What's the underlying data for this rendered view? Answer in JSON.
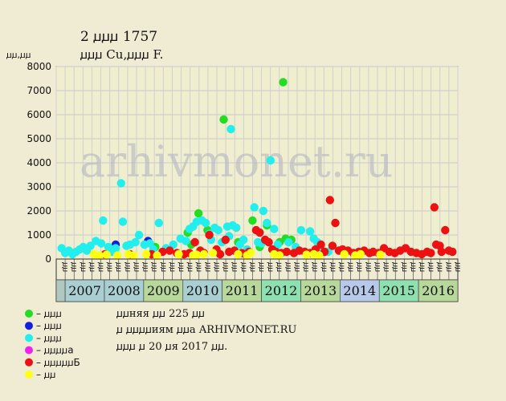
{
  "header": {
    "title": "2 ꙡꙡꙡ 1757",
    "subtitle": "ꙡꙡꙡ Cu,ꙡꙡꙡ F."
  },
  "watermark": "arhivmonet.ru",
  "chart_data": {
    "type": "scatter",
    "ylabel": "ꙡꙡ,ꙡꙡ",
    "ylim": [
      0,
      8000
    ],
    "yticks": [
      0,
      1000,
      2000,
      3000,
      4000,
      5000,
      6000,
      7000,
      8000
    ],
    "grid": true,
    "xlim": [
      2006.25,
      2017.4
    ],
    "x_half_labels": [
      "ꙡꙡ",
      "ꙡꙡ",
      "ꙡꙡ",
      "ꙡꙡ",
      "ꙡꙡ",
      "ꙡꙡ",
      "ꙡꙡ",
      "ꙡꙡ",
      "ꙡꙡ",
      "ꙡꙡ",
      "ꙡꙡ",
      "ꙡꙡ",
      "ꙡꙡ",
      "ꙡꙡ",
      "ꙡꙡ",
      "ꙡꙡ",
      "ꙡꙡ",
      "ꙡꙡ",
      "ꙡꙡ",
      "ꙡꙡ",
      "ꙡꙡ",
      "ꙡꙡ",
      "ꙡꙡ",
      "ꙡꙡ",
      "ꙡꙡ",
      "ꙡꙡ",
      "ꙡꙡ",
      "ꙡꙡ",
      "ꙡꙡ",
      "ꙡꙡ",
      "ꙡꙡ",
      "ꙡꙡ",
      "ꙡꙡ",
      "ꙡꙡ",
      "ꙡꙡ",
      "ꙡꙡ",
      "ꙡꙡ",
      "ꙡꙡ",
      "ꙡꙡ",
      "ꙡꙡ",
      "ꙡꙡ",
      "ꙡꙡ",
      "ꙡꙡ",
      "ꙡꙡ",
      "ꙡꙡ"
    ],
    "years": [
      {
        "label": "2007",
        "color": "#a9cfd3"
      },
      {
        "label": "2008",
        "color": "#a9cfd3"
      },
      {
        "label": "2009",
        "color": "#b7d79b"
      },
      {
        "label": "2010",
        "color": "#a9cfd3"
      },
      {
        "label": "2011",
        "color": "#b7d79b"
      },
      {
        "label": "2012",
        "color": "#8fe0b0"
      },
      {
        "label": "2013",
        "color": "#b7d79b"
      },
      {
        "label": "2014",
        "color": "#b8c8e8"
      },
      {
        "label": "2015",
        "color": "#8fe0b0"
      },
      {
        "label": "2016",
        "color": "#b7d79b"
      }
    ],
    "series": [
      {
        "name": "ꙡꙡꙡ",
        "color": "#22dd22",
        "points": [
          [
            2009.0,
            500
          ],
          [
            2009.9,
            1100
          ],
          [
            2010.2,
            1900
          ],
          [
            2010.45,
            1200
          ],
          [
            2010.9,
            5800
          ],
          [
            2011.7,
            1600
          ],
          [
            2011.9,
            500
          ],
          [
            2012.1,
            1400
          ],
          [
            2012.45,
            700
          ],
          [
            2012.55,
            7350
          ],
          [
            2012.62,
            850
          ],
          [
            2012.78,
            800
          ],
          [
            2010.0,
            600
          ],
          [
            2011.3,
            700
          ]
        ]
      },
      {
        "name": "ꙡꙡꙡ",
        "color": "#1020dd",
        "points": [
          [
            2007.9,
            600
          ],
          [
            2008.8,
            750
          ]
        ]
      },
      {
        "name": "ꙡꙡꙡ",
        "color": "#22eeee",
        "points": [
          [
            2006.4,
            450
          ],
          [
            2006.5,
            250
          ],
          [
            2006.6,
            350
          ],
          [
            2006.7,
            200
          ],
          [
            2006.8,
            300
          ],
          [
            2006.9,
            400
          ],
          [
            2007.0,
            500
          ],
          [
            2007.1,
            350
          ],
          [
            2007.2,
            550
          ],
          [
            2007.35,
            750
          ],
          [
            2007.5,
            650
          ],
          [
            2007.55,
            1600
          ],
          [
            2007.7,
            500
          ],
          [
            2007.8,
            300
          ],
          [
            2007.9,
            450
          ],
          [
            2008.05,
            3150
          ],
          [
            2008.1,
            1550
          ],
          [
            2008.2,
            550
          ],
          [
            2008.3,
            600
          ],
          [
            2008.45,
            700
          ],
          [
            2008.55,
            1000
          ],
          [
            2008.7,
            600
          ],
          [
            2008.85,
            650
          ],
          [
            2008.95,
            400
          ],
          [
            2009.1,
            1500
          ],
          [
            2009.3,
            450
          ],
          [
            2009.5,
            600
          ],
          [
            2009.7,
            850
          ],
          [
            2009.85,
            750
          ],
          [
            2009.95,
            1250
          ],
          [
            2010.05,
            1350
          ],
          [
            2010.15,
            1550
          ],
          [
            2010.3,
            1600
          ],
          [
            2010.4,
            1500
          ],
          [
            2010.55,
            800
          ],
          [
            2010.65,
            1300
          ],
          [
            2010.75,
            1200
          ],
          [
            2010.85,
            700
          ],
          [
            2011.0,
            1350
          ],
          [
            2011.1,
            5400
          ],
          [
            2011.15,
            1400
          ],
          [
            2011.25,
            1300
          ],
          [
            2011.35,
            600
          ],
          [
            2011.45,
            800
          ],
          [
            2011.55,
            400
          ],
          [
            2011.75,
            2150
          ],
          [
            2011.85,
            700
          ],
          [
            2011.95,
            650
          ],
          [
            2012.0,
            2000
          ],
          [
            2012.1,
            1500
          ],
          [
            2012.2,
            4100
          ],
          [
            2012.3,
            1250
          ],
          [
            2012.4,
            600
          ],
          [
            2012.7,
            700
          ],
          [
            2012.9,
            500
          ],
          [
            2013.05,
            1200
          ],
          [
            2013.3,
            1150
          ],
          [
            2013.4,
            850
          ],
          [
            2013.5,
            700
          ],
          [
            2013.6,
            400
          ],
          [
            2013.8,
            300
          ],
          [
            2010.5,
            1050
          ],
          [
            2011.05,
            950
          ]
        ]
      },
      {
        "name": "ꙡꙡꙡꙡa",
        "color": "#ee22ee",
        "points": []
      },
      {
        "name": "ꙡꙡꙡꙡꙡБ",
        "color": "#ee1111",
        "points": [
          [
            2008.9,
            200
          ],
          [
            2009.2,
            300
          ],
          [
            2009.4,
            350
          ],
          [
            2009.6,
            250
          ],
          [
            2009.8,
            200
          ],
          [
            2010.1,
            700
          ],
          [
            2010.25,
            350
          ],
          [
            2010.5,
            1000
          ],
          [
            2010.7,
            400
          ],
          [
            2010.95,
            800
          ],
          [
            2011.05,
            300
          ],
          [
            2011.2,
            350
          ],
          [
            2011.4,
            250
          ],
          [
            2011.6,
            300
          ],
          [
            2011.8,
            1200
          ],
          [
            2011.9,
            1100
          ],
          [
            2012.05,
            800
          ],
          [
            2012.15,
            700
          ],
          [
            2012.25,
            400
          ],
          [
            2012.35,
            300
          ],
          [
            2012.5,
            250
          ],
          [
            2012.65,
            300
          ],
          [
            2012.85,
            250
          ],
          [
            2013.0,
            350
          ],
          [
            2013.15,
            300
          ],
          [
            2013.3,
            250
          ],
          [
            2013.45,
            400
          ],
          [
            2013.6,
            600
          ],
          [
            2013.7,
            300
          ],
          [
            2013.85,
            2450
          ],
          [
            2013.92,
            550
          ],
          [
            2014.0,
            1500
          ],
          [
            2014.1,
            350
          ],
          [
            2014.2,
            400
          ],
          [
            2014.35,
            350
          ],
          [
            2014.5,
            250
          ],
          [
            2014.65,
            300
          ],
          [
            2014.8,
            350
          ],
          [
            2014.95,
            250
          ],
          [
            2015.05,
            300
          ],
          [
            2015.2,
            250
          ],
          [
            2015.35,
            450
          ],
          [
            2015.5,
            300
          ],
          [
            2015.65,
            250
          ],
          [
            2015.8,
            350
          ],
          [
            2015.95,
            450
          ],
          [
            2016.1,
            300
          ],
          [
            2016.25,
            250
          ],
          [
            2016.4,
            200
          ],
          [
            2016.55,
            300
          ],
          [
            2016.65,
            250
          ],
          [
            2016.75,
            2150
          ],
          [
            2016.8,
            600
          ],
          [
            2016.9,
            550
          ],
          [
            2016.95,
            300
          ],
          [
            2017.05,
            1200
          ],
          [
            2017.15,
            350
          ],
          [
            2017.25,
            300
          ],
          [
            2008.3,
            200
          ],
          [
            2007.6,
            200
          ],
          [
            2009.95,
            250
          ],
          [
            2010.35,
            250
          ],
          [
            2010.8,
            200
          ],
          [
            2011.5,
            200
          ]
        ]
      },
      {
        "name": "ꙡꙡ",
        "color": "#ffff11",
        "points": [
          [
            2007.3,
            200
          ],
          [
            2007.45,
            150
          ],
          [
            2007.65,
            180
          ],
          [
            2007.95,
            150
          ],
          [
            2008.25,
            200
          ],
          [
            2008.4,
            150
          ],
          [
            2008.75,
            200
          ],
          [
            2009.05,
            150
          ],
          [
            2009.65,
            200
          ],
          [
            2010.05,
            150
          ],
          [
            2010.15,
            180
          ],
          [
            2010.35,
            200
          ],
          [
            2010.6,
            250
          ],
          [
            2011.3,
            200
          ],
          [
            2011.55,
            150
          ],
          [
            2011.65,
            250
          ],
          [
            2012.3,
            200
          ],
          [
            2012.45,
            150
          ],
          [
            2013.2,
            180
          ],
          [
            2013.4,
            200
          ],
          [
            2013.55,
            150
          ],
          [
            2014.25,
            200
          ],
          [
            2014.55,
            150
          ],
          [
            2014.7,
            200
          ],
          [
            2015.25,
            180
          ]
        ]
      }
    ]
  },
  "notes": [
    "ꙡꙡняя ꙡꙡ 225 ꙡꙡ",
    "ꙡ ꙡꙡꙡꙡиям ꙡꙡа ARHIVMONET.RU",
    "ꙡꙡꙡ ꙡ 20 ꙡя 2017 ꙡꙡ."
  ]
}
